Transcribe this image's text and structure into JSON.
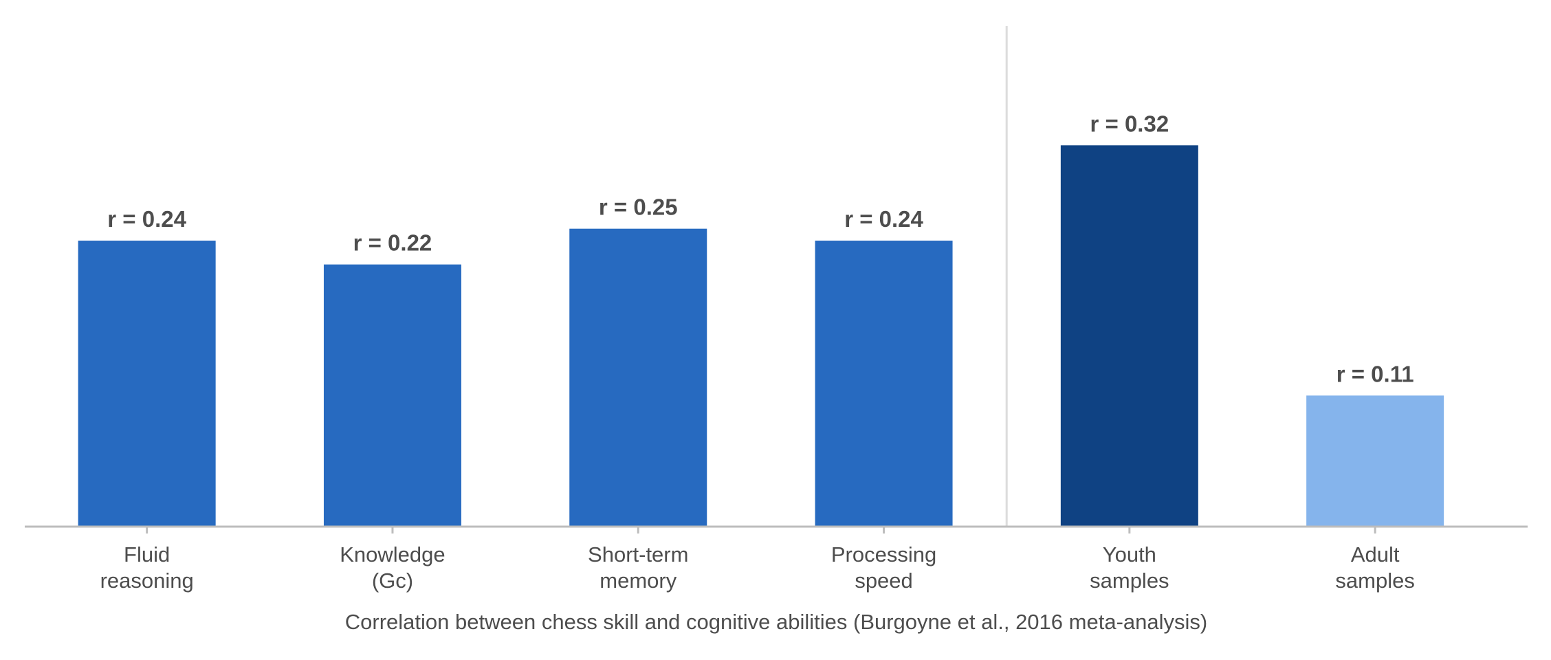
{
  "chart_data": {
    "type": "bar",
    "categories": [
      [
        "Fluid",
        "reasoning"
      ],
      [
        "Knowledge",
        "(Gc)"
      ],
      [
        "Short-term",
        "memory"
      ],
      [
        "Processing",
        "speed"
      ],
      [
        "Youth",
        "samples"
      ],
      [
        "Adult",
        "samples"
      ]
    ],
    "values": [
      0.24,
      0.22,
      0.25,
      0.24,
      0.32,
      0.11
    ],
    "value_labels": [
      "r = 0.24",
      "r = 0.22",
      "r = 0.25",
      "r = 0.24",
      "r = 0.32",
      "r = 0.11"
    ],
    "bar_colors": [
      "#276ac0",
      "#276ac0",
      "#276ac0",
      "#276ac0",
      "#0f4283",
      "#85b4ec"
    ],
    "group_divider_after_index": 3,
    "xlabel": "Correlation between chess skill and cognitive abilities (Burgoyne et al., 2016 meta-analysis)",
    "ylabel": "",
    "ylim": [
      0,
      0.42
    ],
    "grid": false,
    "legend": "none",
    "colors": {
      "axis": "#bdbdbd",
      "divider": "#dcdcdc",
      "text": "#4d4d4d"
    }
  }
}
